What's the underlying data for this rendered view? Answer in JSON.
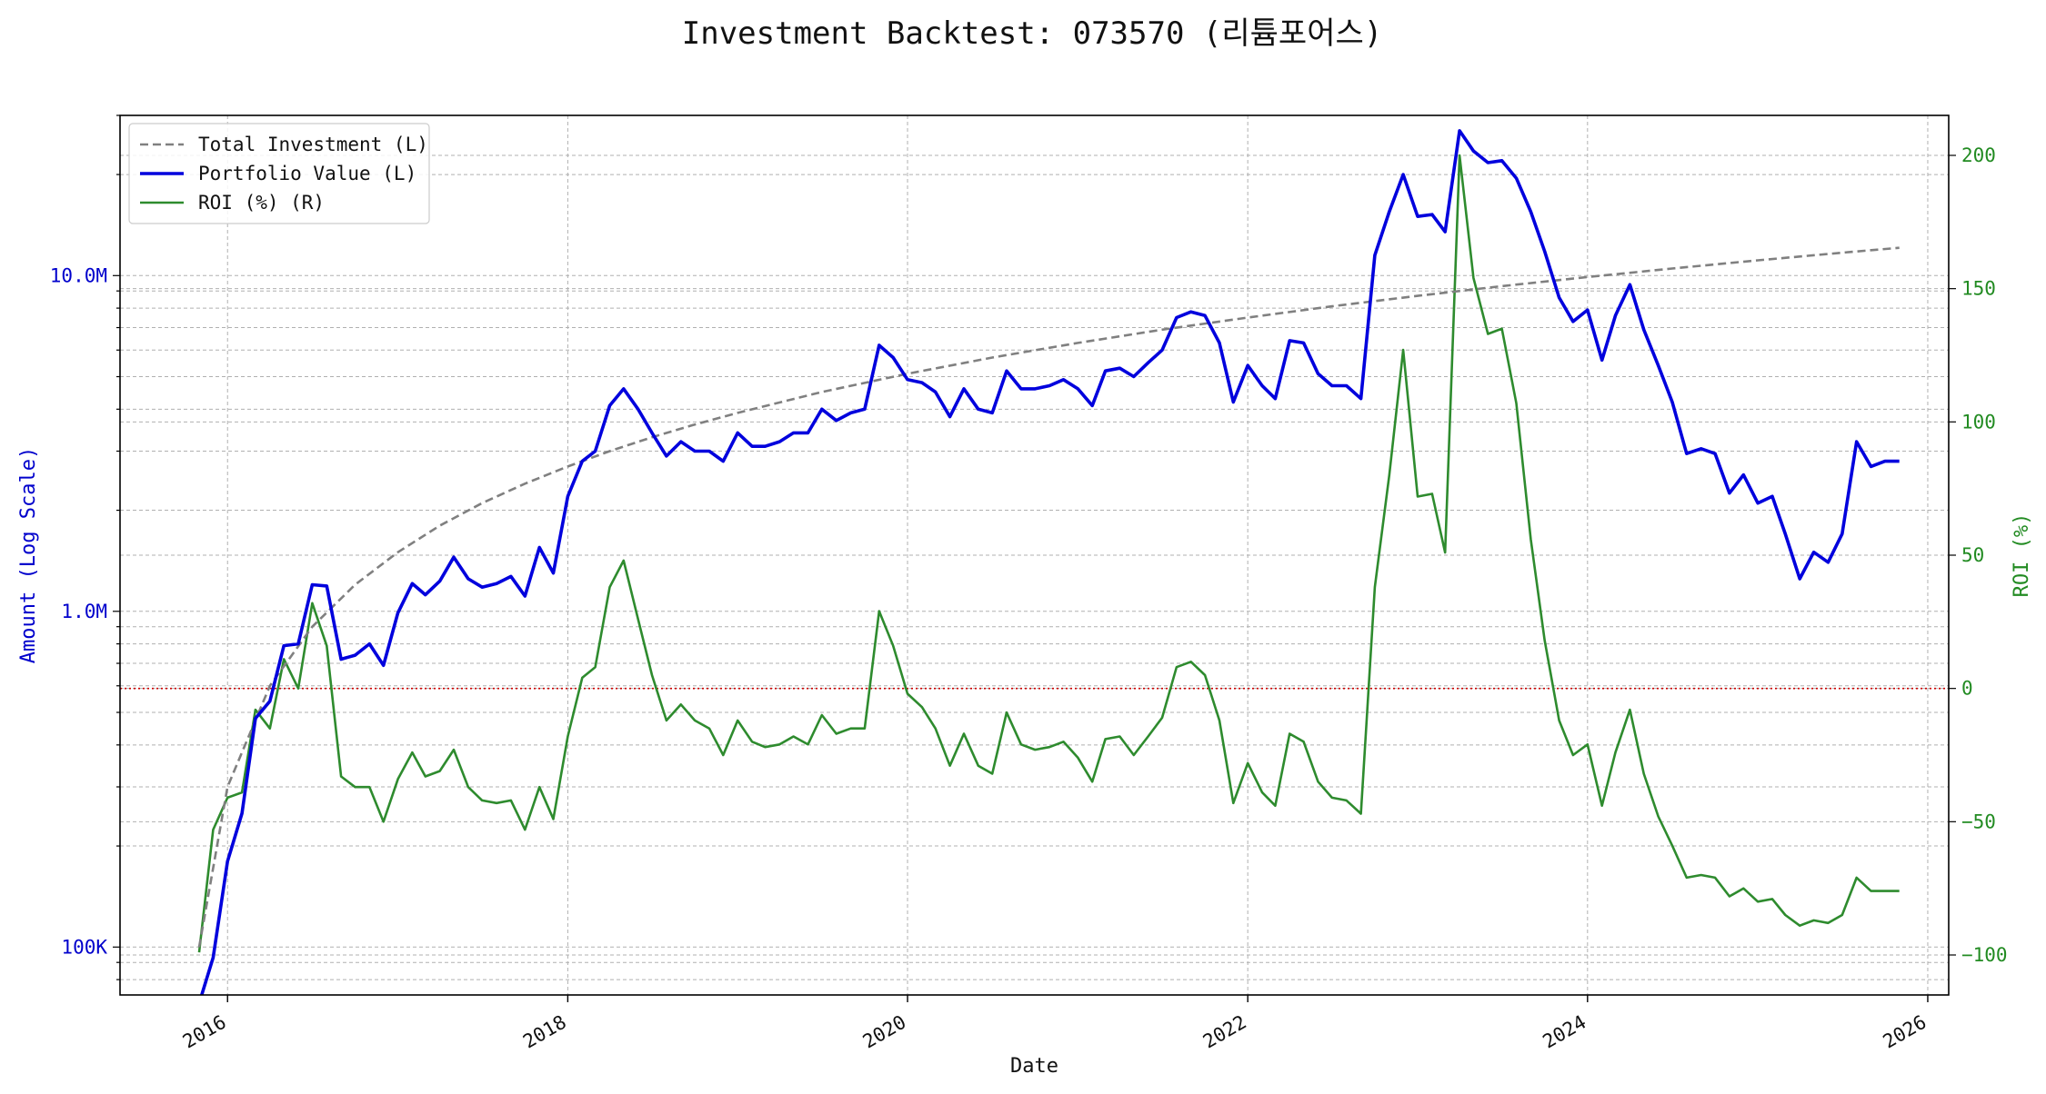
{
  "chart_data": {
    "type": "line",
    "title": "Investment Backtest: 073570 (리튬포어스)",
    "xlabel": "Date",
    "ylabel_left": "Amount (Log Scale)",
    "ylabel_right": "ROI (%)",
    "left_scale": "log",
    "left_ylim": [
      72000,
      30000000
    ],
    "right_ylim": [
      -115,
      215
    ],
    "xlim": [
      "2015-05-15",
      "2026-02-15"
    ],
    "x_ticks": [
      "2016-01-01",
      "2018-01-01",
      "2020-01-01",
      "2022-01-01",
      "2024-01-01",
      "2026-01-01"
    ],
    "x_tick_labels": [
      "2016",
      "2018",
      "2020",
      "2022",
      "2024",
      "2026"
    ],
    "left_ticks": [
      100000,
      1000000,
      10000000
    ],
    "left_tick_labels": [
      "100K",
      "1.0M",
      "10.0M"
    ],
    "right_ticks": [
      -100,
      -50,
      0,
      50,
      100,
      150,
      200
    ],
    "right_tick_labels": [
      "−100",
      "−50",
      "0",
      "50",
      "100",
      "150",
      "200"
    ],
    "grid": true,
    "legend_position": "top-left",
    "zero_line_roi": 0,
    "colors": {
      "total_investment": "#808080",
      "portfolio_value": "#0000dd",
      "roi": "#2e8b2e",
      "zero_line": "#cc0000",
      "left_axis": "#0000cc",
      "right_axis": "#228b22"
    },
    "series": [
      {
        "name": "Total Investment (L)",
        "axis": "left",
        "style": "dashed",
        "x": [
          "2015-11-01",
          "2016-01-01",
          "2016-04-01",
          "2016-07-01",
          "2016-10-01",
          "2017-01-01",
          "2017-04-01",
          "2017-07-01",
          "2017-10-01",
          "2018-01-01",
          "2018-04-01",
          "2018-07-01",
          "2018-10-01",
          "2019-01-01",
          "2019-07-01",
          "2020-01-01",
          "2020-07-01",
          "2021-01-01",
          "2021-07-01",
          "2022-01-01",
          "2022-07-01",
          "2023-01-01",
          "2023-07-01",
          "2024-01-01",
          "2024-07-01",
          "2025-01-01",
          "2025-07-01",
          "2025-11-01"
        ],
        "values": [
          100000,
          300000,
          600000,
          900000,
          1200000,
          1500000,
          1800000,
          2100000,
          2400000,
          2700000,
          3000000,
          3300000,
          3600000,
          3900000,
          4500000,
          5100000,
          5700000,
          6300000,
          6900000,
          7500000,
          8100000,
          8700000,
          9300000,
          9900000,
          10500000,
          11100000,
          11700000,
          12100000
        ]
      },
      {
        "name": "Portfolio Value (L)",
        "axis": "left",
        "style": "solid",
        "x": [
          "2015-11-01",
          "2015-12-01",
          "2016-01-01",
          "2016-02-01",
          "2016-03-01",
          "2016-04-01",
          "2016-05-01",
          "2016-06-01",
          "2016-07-01",
          "2016-08-01",
          "2016-09-01",
          "2016-10-01",
          "2016-11-01",
          "2016-12-01",
          "2017-01-01",
          "2017-02-01",
          "2017-03-01",
          "2017-04-01",
          "2017-05-01",
          "2017-06-01",
          "2017-07-01",
          "2017-08-01",
          "2017-09-01",
          "2017-10-01",
          "2017-11-01",
          "2017-12-01",
          "2018-01-01",
          "2018-02-01",
          "2018-03-01",
          "2018-04-01",
          "2018-05-01",
          "2018-06-01",
          "2018-07-01",
          "2018-08-01",
          "2018-09-01",
          "2018-10-01",
          "2018-11-01",
          "2018-12-01",
          "2019-01-01",
          "2019-02-01",
          "2019-03-01",
          "2019-04-01",
          "2019-05-01",
          "2019-06-01",
          "2019-07-01",
          "2019-08-01",
          "2019-09-01",
          "2019-10-01",
          "2019-11-01",
          "2019-12-01",
          "2020-01-01",
          "2020-02-01",
          "2020-03-01",
          "2020-04-01",
          "2020-05-01",
          "2020-06-01",
          "2020-07-01",
          "2020-08-01",
          "2020-09-01",
          "2020-10-01",
          "2020-11-01",
          "2020-12-01",
          "2021-01-01",
          "2021-02-01",
          "2021-03-01",
          "2021-04-01",
          "2021-05-01",
          "2021-06-01",
          "2021-07-01",
          "2021-08-01",
          "2021-09-01",
          "2021-10-01",
          "2021-11-01",
          "2021-12-01",
          "2022-01-01",
          "2022-02-01",
          "2022-03-01",
          "2022-04-01",
          "2022-05-01",
          "2022-06-01",
          "2022-07-01",
          "2022-08-01",
          "2022-09-01",
          "2022-10-01",
          "2022-11-01",
          "2022-12-01",
          "2023-01-01",
          "2023-02-01",
          "2023-03-01",
          "2023-04-01",
          "2023-05-01",
          "2023-06-01",
          "2023-07-01",
          "2023-08-01",
          "2023-09-01",
          "2023-10-01",
          "2023-11-01",
          "2023-12-01",
          "2024-01-01",
          "2024-02-01",
          "2024-03-01",
          "2024-04-01",
          "2024-05-01",
          "2024-06-01",
          "2024-07-01",
          "2024-08-01",
          "2024-09-01",
          "2024-10-01",
          "2024-11-01",
          "2024-12-01",
          "2025-01-01",
          "2025-02-01",
          "2025-03-01",
          "2025-04-01",
          "2025-05-01",
          "2025-06-01",
          "2025-07-01",
          "2025-08-01",
          "2025-09-01",
          "2025-10-01",
          "2025-11-01"
        ],
        "values": [
          68000,
          93000,
          180000,
          250000,
          480000,
          540000,
          790000,
          800000,
          1200000,
          1190000,
          720000,
          740000,
          800000,
          690000,
          990000,
          1210000,
          1120000,
          1230000,
          1450000,
          1250000,
          1180000,
          1210000,
          1270000,
          1110000,
          1550000,
          1300000,
          2200000,
          2800000,
          3000000,
          4100000,
          4600000,
          4000000,
          3400000,
          2900000,
          3200000,
          3000000,
          3000000,
          2800000,
          3400000,
          3100000,
          3100000,
          3200000,
          3400000,
          3400000,
          4000000,
          3700000,
          3900000,
          4000000,
          6200000,
          5700000,
          4900000,
          4800000,
          4500000,
          3800000,
          4600000,
          4000000,
          3900000,
          5200000,
          4600000,
          4600000,
          4700000,
          4900000,
          4600000,
          4100000,
          5200000,
          5300000,
          5000000,
          5500000,
          6000000,
          7500000,
          7800000,
          7600000,
          6300000,
          4200000,
          5400000,
          4700000,
          4300000,
          6400000,
          6300000,
          5100000,
          4700000,
          4700000,
          4300000,
          11500000,
          15500000,
          20000000,
          15000000,
          15200000,
          13500000,
          27000000,
          23500000,
          21700000,
          22000000,
          19500000,
          15500000,
          11800000,
          8600000,
          7300000,
          7900000,
          5600000,
          7600000,
          9400000,
          6900000,
          5400000,
          4200000,
          2950000,
          3050000,
          2950000,
          2250000,
          2550000,
          2100000,
          2200000,
          1700000,
          1250000,
          1500000,
          1400000,
          1700000,
          3200000,
          2700000,
          2800000,
          2800000
        ]
      },
      {
        "name": "ROI (%) (R)",
        "axis": "right",
        "style": "solid",
        "x": [
          "2015-11-01",
          "2015-12-01",
          "2016-01-01",
          "2016-02-01",
          "2016-03-01",
          "2016-04-01",
          "2016-05-01",
          "2016-06-01",
          "2016-07-01",
          "2016-08-01",
          "2016-09-01",
          "2016-10-01",
          "2016-11-01",
          "2016-12-01",
          "2017-01-01",
          "2017-02-01",
          "2017-03-01",
          "2017-04-01",
          "2017-05-01",
          "2017-06-01",
          "2017-07-01",
          "2017-08-01",
          "2017-09-01",
          "2017-10-01",
          "2017-11-01",
          "2017-12-01",
          "2018-01-01",
          "2018-02-01",
          "2018-03-01",
          "2018-04-01",
          "2018-05-01",
          "2018-06-01",
          "2018-07-01",
          "2018-08-01",
          "2018-09-01",
          "2018-10-01",
          "2018-11-01",
          "2018-12-01",
          "2019-01-01",
          "2019-02-01",
          "2019-03-01",
          "2019-04-01",
          "2019-05-01",
          "2019-06-01",
          "2019-07-01",
          "2019-08-01",
          "2019-09-01",
          "2019-10-01",
          "2019-11-01",
          "2019-12-01",
          "2020-01-01",
          "2020-02-01",
          "2020-03-01",
          "2020-04-01",
          "2020-05-01",
          "2020-06-01",
          "2020-07-01",
          "2020-08-01",
          "2020-09-01",
          "2020-10-01",
          "2020-11-01",
          "2020-12-01",
          "2021-01-01",
          "2021-02-01",
          "2021-03-01",
          "2021-04-01",
          "2021-05-01",
          "2021-06-01",
          "2021-07-01",
          "2021-08-01",
          "2021-09-01",
          "2021-10-01",
          "2021-11-01",
          "2021-12-01",
          "2022-01-01",
          "2022-02-01",
          "2022-03-01",
          "2022-04-01",
          "2022-05-01",
          "2022-06-01",
          "2022-07-01",
          "2022-08-01",
          "2022-09-01",
          "2022-10-01",
          "2022-11-01",
          "2022-12-01",
          "2023-01-01",
          "2023-02-01",
          "2023-03-01",
          "2023-04-01",
          "2023-05-01",
          "2023-06-01",
          "2023-07-01",
          "2023-08-01",
          "2023-09-01",
          "2023-10-01",
          "2023-11-01",
          "2023-12-01",
          "2024-01-01",
          "2024-02-01",
          "2024-03-01",
          "2024-04-01",
          "2024-05-01",
          "2024-06-01",
          "2024-07-01",
          "2024-08-01",
          "2024-09-01",
          "2024-10-01",
          "2024-11-01",
          "2024-12-01",
          "2025-01-01",
          "2025-02-01",
          "2025-03-01",
          "2025-04-01",
          "2025-05-01",
          "2025-06-01",
          "2025-07-01",
          "2025-08-01",
          "2025-09-01",
          "2025-10-01",
          "2025-11-01"
        ],
        "values": [
          -99,
          -53,
          -41,
          -39,
          -8,
          -15,
          11,
          0,
          32,
          16,
          -33,
          -37,
          -37,
          -50,
          -34,
          -24,
          -33,
          -31,
          -23,
          -37,
          -42,
          -43,
          -42,
          -53,
          -37,
          -49,
          -18,
          4,
          8,
          38,
          48,
          26,
          5,
          -12,
          -6,
          -12,
          -15,
          -25,
          -12,
          -20,
          -22,
          -21,
          -18,
          -21,
          -10,
          -17,
          -15,
          -15,
          29,
          16,
          -2,
          -7,
          -15,
          -29,
          -17,
          -29,
          -32,
          -9,
          -21,
          -23,
          -22,
          -20,
          -26,
          -35,
          -19,
          -18,
          -25,
          -18,
          -11,
          8,
          10,
          5,
          -12,
          -43,
          -28,
          -39,
          -44,
          -17,
          -20,
          -35,
          -41,
          -42,
          -47,
          38,
          80,
          127,
          72,
          73,
          51,
          200,
          154,
          133,
          135,
          107,
          56,
          18,
          -12,
          -25,
          -21,
          -44,
          -24,
          -8,
          -32,
          -48,
          -59,
          -71,
          -70,
          -71,
          -78,
          -75,
          -80,
          -79,
          -85,
          -89,
          -87,
          -88,
          -85,
          -71,
          -76,
          -76,
          -76
        ]
      }
    ]
  }
}
